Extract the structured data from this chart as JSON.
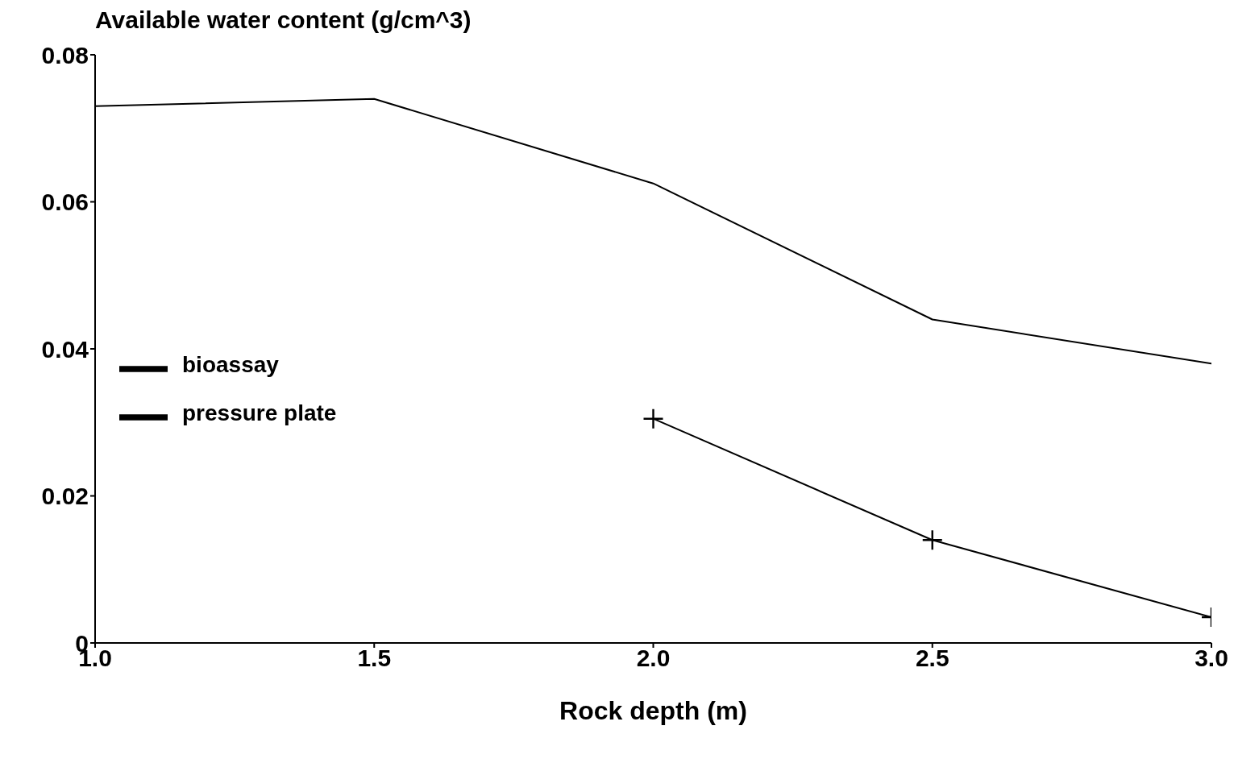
{
  "chart_data": {
    "type": "line",
    "ylabel": "Available water content (g/cm^3)",
    "xlabel": "Rock depth (m)",
    "series": [
      {
        "name": "bioassay",
        "color": "#000000",
        "marker": "none",
        "x": [
          1.0,
          1.5,
          2.0,
          2.5,
          3.0
        ],
        "values": [
          0.073,
          0.074,
          0.0625,
          0.044,
          0.038
        ]
      },
      {
        "name": "pressure plate",
        "color": "#000000",
        "marker": "cross",
        "x": [
          2.0,
          2.5,
          3.0
        ],
        "values": [
          0.0305,
          0.014,
          0.0035
        ]
      }
    ],
    "xlim": [
      1,
      3
    ],
    "xticks": [
      {
        "value": 1,
        "label": "1.0"
      },
      {
        "value": 1.5,
        "label": "1.5"
      },
      {
        "value": 2,
        "label": "2.0"
      },
      {
        "value": 2.5,
        "label": "2.5"
      },
      {
        "value": 3,
        "label": "3.0"
      }
    ],
    "ylim": [
      0,
      0.08
    ],
    "yticks": [
      0,
      0.02,
      0.04,
      0.06,
      0.08
    ],
    "grid": false,
    "legend": "left",
    "line_style": "solid"
  }
}
